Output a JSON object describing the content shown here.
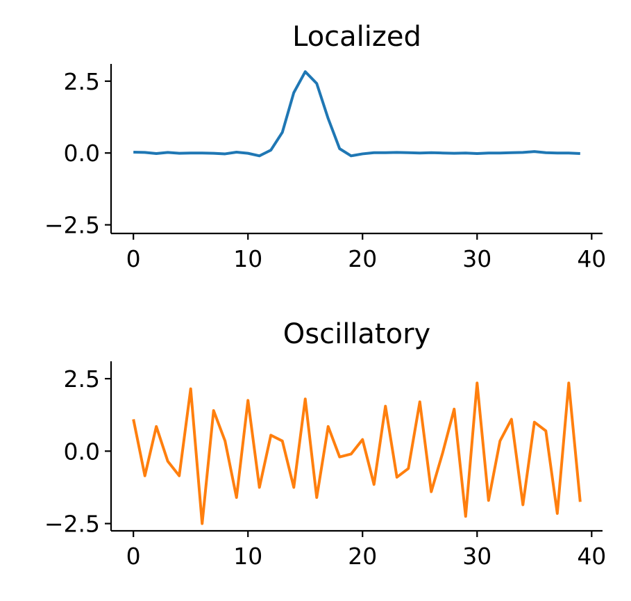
{
  "chart_data": [
    {
      "type": "line",
      "title": "Localized",
      "xlabel": "",
      "ylabel": "",
      "xlim": [
        -1.95,
        40.95
      ],
      "ylim": [
        -2.8,
        3.1
      ],
      "xticks": [
        0,
        10,
        20,
        30,
        40
      ],
      "xtick_labels": [
        "0",
        "10",
        "20",
        "30",
        "40"
      ],
      "yticks": [
        -2.5,
        0.0,
        2.5
      ],
      "ytick_labels": [
        "−2.5",
        "0.0",
        "2.5"
      ],
      "grid": false,
      "series": [
        {
          "color": "#1f77b4",
          "x": [
            0,
            1,
            2,
            3,
            4,
            5,
            6,
            7,
            8,
            9,
            10,
            11,
            12,
            13,
            14,
            15,
            16,
            17,
            18,
            19,
            20,
            21,
            22,
            23,
            24,
            25,
            26,
            27,
            28,
            29,
            30,
            31,
            32,
            33,
            34,
            35,
            36,
            37,
            38,
            39
          ],
          "values": [
            0.03,
            0.02,
            -0.02,
            0.02,
            -0.01,
            0.0,
            0.0,
            -0.01,
            -0.03,
            0.03,
            -0.01,
            -0.1,
            0.1,
            0.72,
            2.1,
            2.83,
            2.42,
            1.2,
            0.15,
            -0.1,
            -0.03,
            0.01,
            0.01,
            0.02,
            0.01,
            0.0,
            0.01,
            0.0,
            -0.01,
            0.0,
            -0.02,
            0.0,
            0.0,
            0.01,
            0.02,
            0.05,
            0.01,
            0.0,
            0.0,
            -0.02
          ]
        }
      ]
    },
    {
      "type": "line",
      "title": "Oscillatory",
      "xlabel": "",
      "ylabel": "",
      "xlim": [
        -1.95,
        40.95
      ],
      "ylim": [
        -2.75,
        3.1
      ],
      "xticks": [
        0,
        10,
        20,
        30,
        40
      ],
      "xtick_labels": [
        "0",
        "10",
        "20",
        "30",
        "40"
      ],
      "yticks": [
        -2.5,
        0.0,
        2.5
      ],
      "ytick_labels": [
        "−2.5",
        "0.0",
        "2.5"
      ],
      "grid": false,
      "series": [
        {
          "color": "#ff7f0e",
          "x": [
            0,
            1,
            2,
            3,
            4,
            5,
            6,
            7,
            8,
            9,
            10,
            11,
            12,
            13,
            14,
            15,
            16,
            17,
            18,
            19,
            20,
            21,
            22,
            23,
            24,
            25,
            26,
            27,
            28,
            29,
            30,
            31,
            32,
            33,
            34,
            35,
            36,
            37,
            38,
            39
          ],
          "values": [
            1.1,
            -0.85,
            0.85,
            -0.35,
            -0.85,
            2.15,
            -2.5,
            1.4,
            0.35,
            -1.6,
            1.75,
            -1.25,
            0.55,
            0.35,
            -1.25,
            1.8,
            -1.6,
            0.85,
            -0.2,
            -0.1,
            0.4,
            -1.15,
            1.55,
            -0.9,
            -0.6,
            1.7,
            -1.4,
            -0.05,
            1.45,
            -2.25,
            2.35,
            -1.7,
            0.35,
            1.1,
            -1.85,
            1.0,
            0.7,
            -2.15,
            2.35,
            -1.75
          ]
        }
      ]
    }
  ]
}
